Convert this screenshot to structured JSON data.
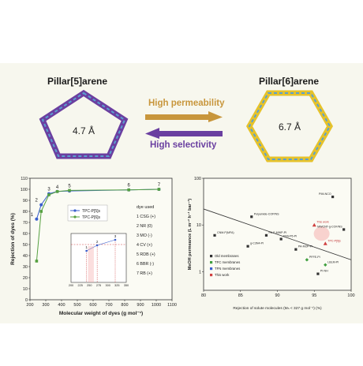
{
  "top": {
    "left_title": "Pillar[5]arene",
    "right_title": "Pillar[6]arene",
    "left_size": "4.7 Å",
    "right_size": "6.7 Å",
    "arrow_top": "High permeability",
    "arrow_bottom": "High selectivity",
    "colors": {
      "pentagon": "#6b3fa0",
      "pentagon_inner": "#5aa0d0",
      "hexagon": "#e6c22a",
      "hexagon_inner": "#5aa0d0",
      "arrow_top": "#c8963c",
      "arrow_bottom": "#6a3fa0"
    }
  },
  "chart_data": [
    {
      "type": "line",
      "xlabel": "Molecular weight of dyes (g mol⁻¹)",
      "ylabel": "Rejection of dyes (%)",
      "xlim": [
        200,
        1100
      ],
      "ylim": [
        0,
        110
      ],
      "xticks": [
        "200",
        "300",
        "400",
        "500",
        "600",
        "700",
        "800",
        "900",
        "1000",
        "1100"
      ],
      "yticks": [
        "0",
        "10",
        "20",
        "30",
        "40",
        "50",
        "60",
        "70",
        "80",
        "90",
        "100",
        "110"
      ],
      "series": [
        {
          "name": "TPC-P[5]s",
          "color": "#3a5fcd",
          "x": [
            242,
            271,
            320,
            373,
            450,
            826,
            1017
          ],
          "y": [
            73,
            86,
            96,
            98,
            98.5,
            99.5,
            100
          ]
        },
        {
          "name": "TPC-P[6]s",
          "color": "#55a040",
          "x": [
            242,
            271,
            320,
            373,
            450,
            826,
            1017
          ],
          "y": [
            35,
            80,
            95,
            98,
            99,
            99.5,
            100
          ]
        }
      ],
      "point_labels": [
        "1",
        "2",
        "3",
        "4",
        "5",
        "6",
        "7"
      ],
      "dyes_title": "dye used",
      "dyes": [
        "1 CSG (+)",
        "2 NR (0)",
        "3 MO (-)",
        "4 CV (+)",
        "5 RDB (+)",
        "6 BBR (-)",
        "7 RB (+)"
      ],
      "inset": {
        "xlim": [
          200,
          350
        ],
        "xticks": [
          "200",
          "225",
          "250",
          "275",
          "300",
          "325",
          "350"
        ],
        "labels": [
          "1",
          "2",
          "3"
        ]
      }
    },
    {
      "type": "scatter",
      "xlabel": "Rejection of solute molecules (Mₙ < 327 g mol⁻¹) (%)",
      "ylabel": "MeOH permeance (L m⁻² h⁻¹ bar⁻¹)",
      "xlim": [
        80,
        100
      ],
      "xticks": [
        "80",
        "85",
        "90",
        "95",
        "100"
      ],
      "yticks": [
        "1",
        "10",
        "100"
      ],
      "log_y": true,
      "legend": [
        "Old membranes",
        "TFC membranes",
        "TFN membranes",
        "This work"
      ],
      "legend_colors": [
        "#333333",
        "#3fa03f",
        "#3a5fcd",
        "#d04040"
      ],
      "points": [
        {
          "label": "PIM-NCO",
          "x": 97.5,
          "y": 40,
          "series": 0
        },
        {
          "label": "Polyamide-COP/NS",
          "x": 86.5,
          "y": 15,
          "series": 0
        },
        {
          "label": "This work",
          "x": 95.0,
          "y": 10,
          "series": 3
        },
        {
          "label": "MWCNT-g-COF/NS",
          "x": 99.0,
          "y": 8,
          "series": 0
        },
        {
          "label": "CNM-P(MFA)",
          "x": 81.5,
          "y": 6,
          "series": 0
        },
        {
          "label": "PA-E-MWP-PI",
          "x": 88.5,
          "y": 6,
          "series": 0
        },
        {
          "label": "PFA-P6-PI",
          "x": 90.5,
          "y": 5,
          "series": 0
        },
        {
          "label": "TPC-P[5]s",
          "x": 96.5,
          "y": 4,
          "series": 3
        },
        {
          "label": "g-C3N4-PI",
          "x": 86.0,
          "y": 3.5,
          "series": 0
        },
        {
          "label": "PA-MOF-PI",
          "x": 92.5,
          "y": 3,
          "series": 0
        },
        {
          "label": "PFFE-PI",
          "x": 94.0,
          "y": 1.8,
          "series": 1
        },
        {
          "label": "LBLM-PI",
          "x": 96.5,
          "y": 1.4,
          "series": 1
        },
        {
          "label": "PI-NH",
          "x": 95.5,
          "y": 0.9,
          "series": 0
        }
      ]
    }
  ]
}
